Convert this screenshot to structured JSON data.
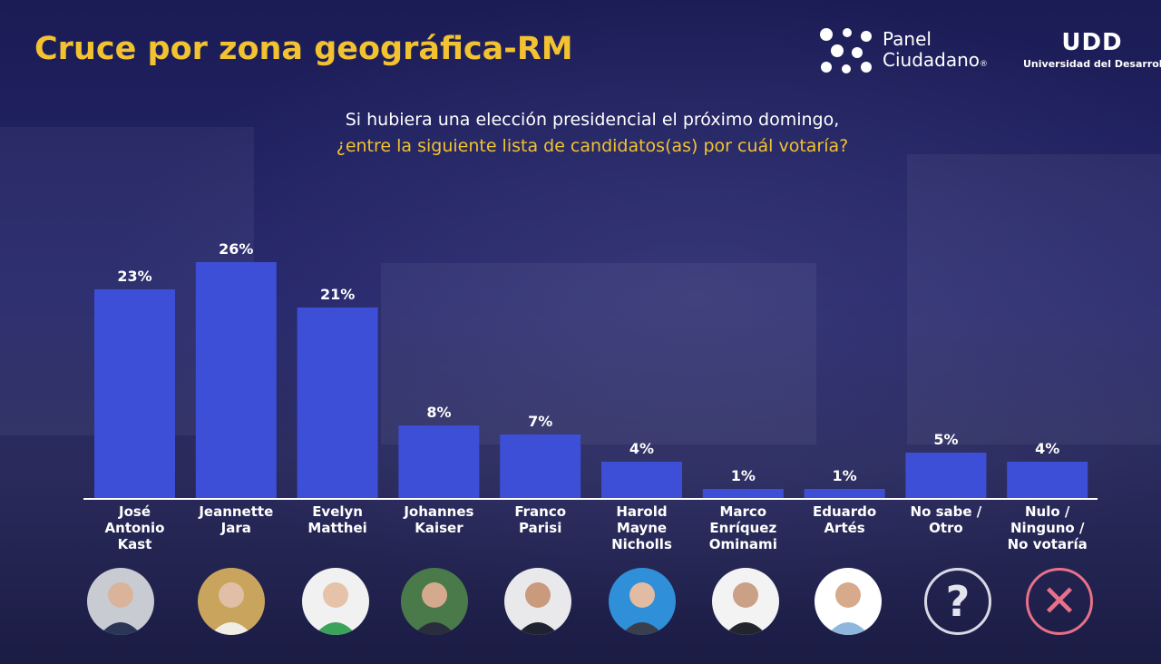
{
  "header": {
    "title": "Cruce por zona geográfica-RM",
    "question_line1": "Si hubiera una elección presidencial el próximo domingo,",
    "question_line2": "¿entre la siguiente lista de candidatos(as) por cuál votaría?"
  },
  "logos": {
    "panel_line1": "Panel",
    "panel_line2": "Ciudadano",
    "panel_reg": "®",
    "udd_mark": "UDD",
    "udd_sub": "Universidad del Desarroll"
  },
  "colors": {
    "bar": "#3d4fd6",
    "title": "#f2c230",
    "question_highlight": "#f2c230",
    "no_icon": "#e8708a"
  },
  "chart_data": {
    "type": "bar",
    "categories": [
      [
        "José",
        "Antonio",
        "Kast"
      ],
      [
        "Jeannette",
        "Jara"
      ],
      [
        "Evelyn",
        "Matthei"
      ],
      [
        "Johannes",
        "Kaiser"
      ],
      [
        "Franco",
        "Parisi"
      ],
      [
        "Harold",
        "Mayne",
        "Nicholls"
      ],
      [
        "Marco",
        "Enríquez",
        "Ominami"
      ],
      [
        "Eduardo",
        "Artés"
      ],
      [
        "No sabe /",
        "Otro"
      ],
      [
        "Nulo /",
        "Ninguno /",
        "No votaría"
      ]
    ],
    "values": [
      23,
      26,
      21,
      8,
      7,
      4,
      1,
      1,
      5,
      4
    ],
    "value_labels": [
      "23%",
      "26%",
      "21%",
      "8%",
      "7%",
      "4%",
      "1%",
      "1%",
      "5%",
      "4%"
    ],
    "ylim": [
      0,
      26
    ],
    "title": "Cruce por zona geográfica-RM",
    "xlabel": "",
    "ylabel": ""
  },
  "icons": {
    "unknown": "?",
    "none": "✕"
  }
}
